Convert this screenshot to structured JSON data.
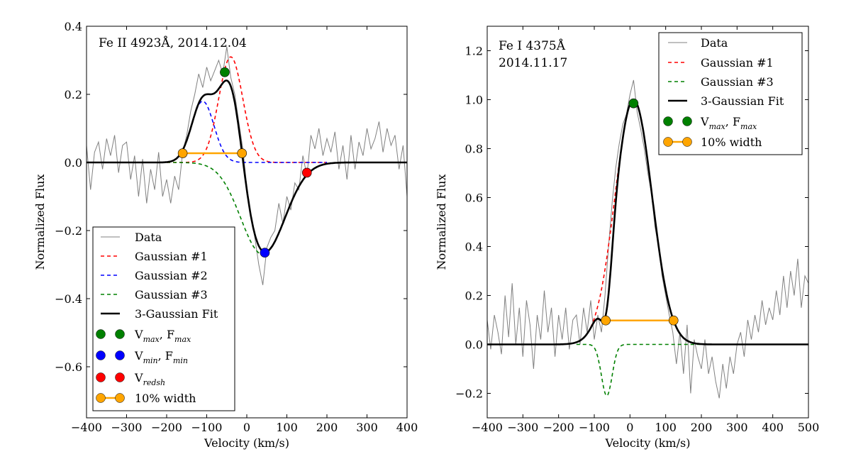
{
  "chart_data": [
    {
      "type": "line",
      "title_lines": [
        "Fe II 4923Å, 2014.12.04"
      ],
      "xlabel": "Velocity (km/s)",
      "ylabel": "Normalized Flux",
      "xlim": [
        -400,
        400
      ],
      "ylim": [
        -0.75,
        0.4
      ],
      "xticks": [
        -400,
        -300,
        -200,
        -100,
        0,
        100,
        200,
        300,
        400
      ],
      "xtick_labels": [
        "−400",
        "−300",
        "−200",
        "−100",
        "0",
        "100",
        "200",
        "300",
        "400"
      ],
      "yticks": [
        -0.6,
        -0.4,
        -0.2,
        0.0,
        0.2,
        0.4
      ],
      "ytick_labels": [
        "−0.6",
        "−0.4",
        "−0.2",
        "0.0",
        "0.2",
        "0.4"
      ],
      "grid": false,
      "legend_position": "lower-left",
      "data": {
        "x_start": -400,
        "x_step": 10,
        "y": [
          0.05,
          -0.08,
          0.03,
          0.06,
          -0.02,
          0.07,
          0.02,
          0.08,
          -0.03,
          0.05,
          0.06,
          -0.05,
          0.02,
          -0.1,
          0.01,
          -0.12,
          -0.02,
          -0.08,
          0.03,
          -0.1,
          -0.05,
          -0.12,
          -0.04,
          -0.08,
          0.03,
          0.08,
          0.15,
          0.2,
          0.26,
          0.22,
          0.28,
          0.24,
          0.27,
          0.3,
          0.26,
          0.34,
          0.25,
          0.2,
          0.12,
          0.04,
          -0.07,
          -0.15,
          -0.22,
          -0.3,
          -0.36,
          -0.25,
          -0.22,
          -0.2,
          -0.12,
          -0.18,
          -0.1,
          -0.14,
          -0.06,
          -0.08,
          0.02,
          -0.04,
          0.08,
          0.04,
          0.1,
          0.02,
          0.07,
          0.03,
          0.09,
          -0.02,
          0.05,
          -0.05,
          0.08,
          -0.02,
          0.06,
          0.02,
          0.1,
          0.04,
          0.07,
          0.12,
          0.03,
          0.1,
          0.05,
          0.08,
          -0.02,
          0.05,
          -0.1
        ]
      },
      "gaussians": [
        {
          "name": "Gaussian #1",
          "amplitude": 0.31,
          "center": -40,
          "sigma": 30,
          "color": "#ff0000",
          "range": [
            -200,
            200
          ]
        },
        {
          "name": "Gaussian #2",
          "amplitude": 0.18,
          "center": -110,
          "sigma": 28,
          "color": "#0000ff",
          "range": [
            -200,
            200
          ]
        },
        {
          "name": "Gaussian #3",
          "amplitude": -0.27,
          "center": 40,
          "sigma": 55,
          "color": "#008000",
          "range": [
            -200,
            40
          ]
        }
      ],
      "markers": {
        "vmax": {
          "v": -55,
          "flux": 0.265,
          "color": "#008000"
        },
        "vmin": {
          "v": 45,
          "flux": -0.265,
          "color": "#0000ff"
        },
        "vredsh": {
          "v": 150,
          "flux": -0.03,
          "color": "#ff0000"
        },
        "width10": {
          "v1": -160,
          "v2": -12,
          "flux": 0.027,
          "color": "#ffa500"
        }
      },
      "legend": [
        {
          "kind": "data",
          "label": [
            {
              "t": "Data"
            }
          ]
        },
        {
          "kind": "dash",
          "color": "#ff0000",
          "label": [
            {
              "t": "Gaussian #1"
            }
          ]
        },
        {
          "kind": "dash",
          "color": "#0000ff",
          "label": [
            {
              "t": "Gaussian #2"
            }
          ]
        },
        {
          "kind": "dash",
          "color": "#008000",
          "label": [
            {
              "t": "Gaussian #3"
            }
          ]
        },
        {
          "kind": "fit",
          "label": [
            {
              "t": "3-Gaussian Fit"
            }
          ]
        },
        {
          "kind": "dots",
          "color": "#008000",
          "label": [
            {
              "t": "V"
            },
            {
              "t": "max",
              "sub": true
            },
            {
              "t": ", F"
            },
            {
              "t": "max",
              "sub": true
            }
          ]
        },
        {
          "kind": "dots",
          "color": "#0000ff",
          "label": [
            {
              "t": "V"
            },
            {
              "t": "min",
              "sub": true
            },
            {
              "t": ", F"
            },
            {
              "t": "min",
              "sub": true
            }
          ]
        },
        {
          "kind": "dots",
          "color": "#ff0000",
          "label": [
            {
              "t": "V"
            },
            {
              "t": "redsh",
              "sub": true
            }
          ]
        },
        {
          "kind": "width",
          "color": "#ffa500",
          "label": [
            {
              "t": "10% width"
            }
          ]
        }
      ]
    },
    {
      "type": "line",
      "title_lines": [
        "Fe I 4375Å",
        "2014.11.17"
      ],
      "xlabel": "Velocity (km/s)",
      "ylabel": "Normalized Flux",
      "xlim": [
        -400,
        500
      ],
      "ylim": [
        -0.3,
        1.3
      ],
      "xticks": [
        -400,
        -300,
        -200,
        -100,
        0,
        100,
        200,
        300,
        400,
        500
      ],
      "xtick_labels": [
        "−400",
        "−300",
        "−200",
        "−100",
        "0",
        "100",
        "200",
        "300",
        "400",
        "500"
      ],
      "yticks": [
        -0.2,
        0.0,
        0.2,
        0.4,
        0.6,
        0.8,
        1.0,
        1.2
      ],
      "ytick_labels": [
        "−0.2",
        "0.0",
        "0.2",
        "0.4",
        "0.6",
        "0.8",
        "1.0",
        "1.2"
      ],
      "grid": false,
      "legend_position": "upper-right",
      "data": {
        "x_start": -400,
        "x_step": 10,
        "y": [
          0.1,
          -0.02,
          0.12,
          0.05,
          -0.04,
          0.2,
          0.03,
          0.25,
          0.0,
          0.15,
          -0.05,
          0.18,
          0.08,
          -0.1,
          0.12,
          0.02,
          0.22,
          0.05,
          0.15,
          -0.05,
          0.12,
          0.02,
          0.15,
          -0.02,
          0.1,
          0.12,
          0.0,
          0.15,
          0.05,
          0.18,
          0.02,
          0.12,
          0.05,
          0.2,
          0.4,
          0.58,
          0.72,
          0.82,
          0.9,
          0.94,
          1.02,
          1.08,
          0.95,
          0.88,
          0.8,
          0.7,
          0.62,
          0.48,
          0.4,
          0.28,
          0.2,
          0.12,
          0.05,
          -0.08,
          0.05,
          -0.12,
          0.08,
          -0.2,
          0.02,
          -0.05,
          -0.1,
          0.02,
          -0.12,
          -0.05,
          -0.15,
          -0.22,
          -0.08,
          -0.18,
          -0.05,
          -0.12,
          0.0,
          0.05,
          -0.05,
          0.1,
          0.02,
          0.12,
          0.05,
          0.18,
          0.08,
          0.15,
          0.1,
          0.22,
          0.12,
          0.28,
          0.15,
          0.3,
          0.2,
          0.35,
          0.15,
          0.28,
          0.25
        ]
      },
      "gaussians": [
        {
          "name": "Gaussian #1",
          "amplitude": 1.0,
          "center": 10,
          "sigma": 52,
          "color": "#ff0000",
          "range": [
            -130,
            -30
          ]
        },
        {
          "name": "Gaussian #3",
          "amplitude": -0.21,
          "center": -65,
          "sigma": 15,
          "color": "#008000",
          "range": [
            -150,
            200
          ]
        }
      ],
      "markers": {
        "vmax": {
          "v": 10,
          "flux": 0.985,
          "color": "#008000"
        },
        "width10": {
          "v1": -68,
          "v2": 122,
          "flux": 0.098,
          "color": "#ffa500"
        }
      },
      "legend": [
        {
          "kind": "data",
          "label": [
            {
              "t": "Data"
            }
          ]
        },
        {
          "kind": "dash",
          "color": "#ff0000",
          "label": [
            {
              "t": "Gaussian #1"
            }
          ]
        },
        {
          "kind": "dash",
          "color": "#008000",
          "label": [
            {
              "t": "Gaussian #3"
            }
          ]
        },
        {
          "kind": "fit",
          "label": [
            {
              "t": "3-Gaussian Fit"
            }
          ]
        },
        {
          "kind": "dots",
          "color": "#008000",
          "label": [
            {
              "t": "V"
            },
            {
              "t": "max",
              "sub": true
            },
            {
              "t": ", F"
            },
            {
              "t": "max",
              "sub": true
            }
          ]
        },
        {
          "kind": "width",
          "color": "#ffa500",
          "label": [
            {
              "t": "10% width"
            }
          ]
        }
      ]
    }
  ]
}
